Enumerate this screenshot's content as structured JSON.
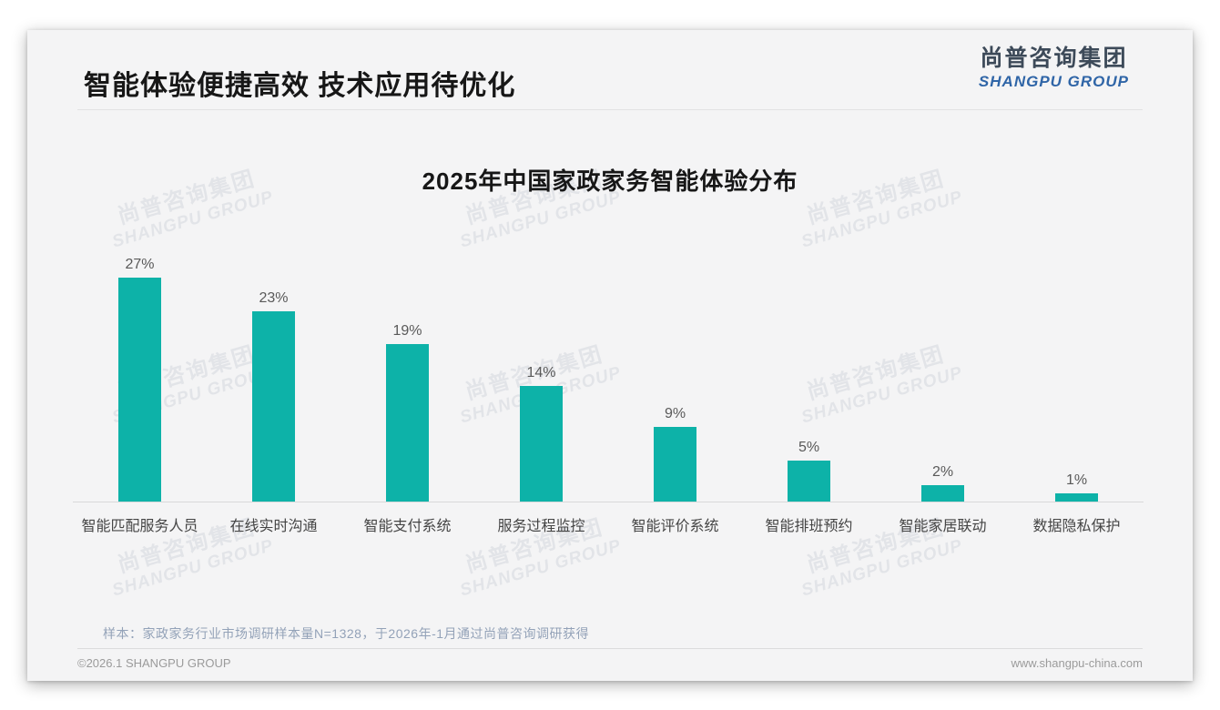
{
  "page": {
    "title": "智能体验便捷高效 技术应用待优化",
    "logo": {
      "cn": "尚普咨询集团",
      "en": "SHANGPU GROUP"
    },
    "watermark": {
      "cn": "尚普咨询集团",
      "en": "SHANGPU GROUP"
    },
    "note": "样本：家政家务行业市场调研样本量N=1328，于2026年-1月通过尚普咨询调研获得",
    "footer": {
      "left": "©2026.1 SHANGPU GROUP",
      "right": "www.shangpu-china.com"
    }
  },
  "colors": {
    "bar": "#0db2a8",
    "logo_blue": "#2f65a7",
    "logo_dark": "#3d4a59",
    "note_text": "#93a2b8"
  },
  "chart_data": {
    "type": "bar",
    "title": "2025年中国家政家务智能体验分布",
    "categories": [
      "智能匹配服务人员",
      "在线实时沟通",
      "智能支付系统",
      "服务过程监控",
      "智能评价系统",
      "智能排班预约",
      "智能家居联动",
      "数据隐私保护"
    ],
    "values": [
      27,
      23,
      19,
      14,
      9,
      5,
      2,
      1
    ],
    "value_labels": [
      "27%",
      "23%",
      "19%",
      "14%",
      "9%",
      "5%",
      "2%",
      "1%"
    ],
    "unit": "%",
    "ylim": [
      0,
      30
    ],
    "grid": false,
    "legend": false,
    "bar_color": "#0db2a8"
  }
}
